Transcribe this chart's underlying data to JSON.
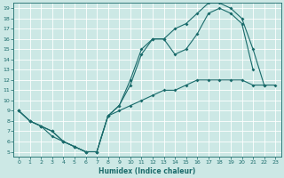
{
  "xlabel": "Humidex (Indice chaleur)",
  "xlim": [
    -0.5,
    23.5
  ],
  "ylim": [
    4.5,
    19.5
  ],
  "xticks": [
    0,
    1,
    2,
    3,
    4,
    5,
    6,
    7,
    8,
    9,
    10,
    11,
    12,
    13,
    14,
    15,
    16,
    17,
    18,
    19,
    20,
    21,
    22,
    23
  ],
  "yticks": [
    5,
    6,
    7,
    8,
    9,
    10,
    11,
    12,
    13,
    14,
    15,
    16,
    17,
    18,
    19
  ],
  "bg_color": "#cce8e5",
  "grid_color": "#ffffff",
  "line_color": "#1a6b6b",
  "line1_x": [
    0,
    1,
    2,
    3,
    4,
    5,
    6,
    7,
    8,
    9,
    10,
    11,
    12,
    13,
    14,
    15,
    16,
    17,
    18,
    19,
    20,
    21,
    22,
    23
  ],
  "line1_y": [
    9,
    8,
    7.5,
    6.5,
    6,
    5.5,
    5,
    5,
    8.5,
    9,
    9.5,
    10,
    10.5,
    11,
    11,
    11.5,
    12,
    12,
    12,
    12,
    12,
    11.5,
    11.5,
    11.5
  ],
  "line2_x": [
    0,
    1,
    2,
    3,
    4,
    5,
    6,
    7,
    8,
    9,
    10,
    11,
    12,
    13,
    14,
    15,
    16,
    17,
    18,
    19,
    20,
    21
  ],
  "line2_y": [
    9,
    8,
    7.5,
    7,
    6,
    5.5,
    5,
    5,
    8.5,
    9.5,
    11.5,
    14.5,
    16,
    16,
    14.5,
    15,
    16.5,
    18.5,
    19,
    18.5,
    17.5,
    13
  ],
  "line3_x": [
    0,
    1,
    2,
    3,
    4,
    5,
    6,
    7,
    8,
    9,
    10,
    11,
    12,
    13,
    14,
    15,
    16,
    17,
    18,
    19,
    20,
    21,
    22
  ],
  "line3_y": [
    9,
    8,
    7.5,
    7,
    6,
    5.5,
    5,
    5,
    8.5,
    9.5,
    12,
    15,
    16,
    16,
    17,
    17.5,
    18.5,
    19.5,
    19.5,
    19,
    18,
    15,
    11.5
  ]
}
